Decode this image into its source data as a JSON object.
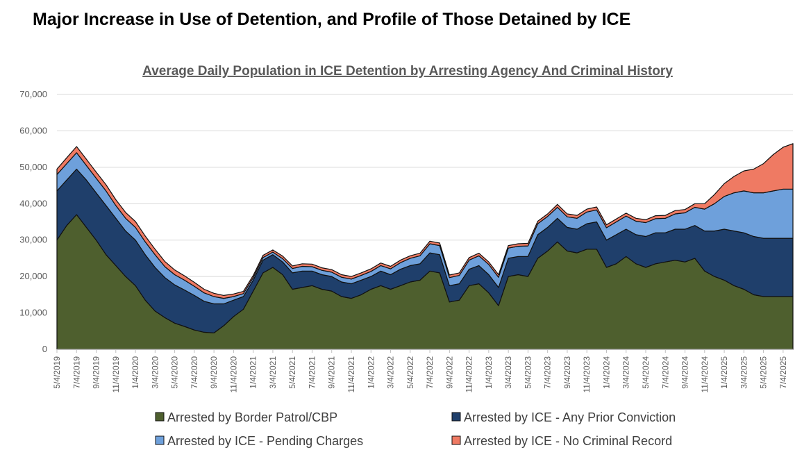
{
  "slide_title": "Major Increase in Use of Detention, and Profile of Those Detained by ICE",
  "colors": {
    "border_patrol": "#4e5f2e",
    "prior_conviction": "#1f3f6b",
    "pending_charges": "#6ea0db",
    "no_record": "#ef7a63"
  },
  "chart_data": {
    "type": "area",
    "stacked": true,
    "title": "Average Daily Population in ICE Detention by Arresting Agency And Criminal History",
    "xlabel": "",
    "ylabel": "",
    "ylim": [
      0,
      70000
    ],
    "y_ticks": [
      0,
      10000,
      20000,
      30000,
      40000,
      50000,
      60000,
      70000
    ],
    "y_tick_labels": [
      "0",
      "10,000",
      "20,000",
      "30,000",
      "40,000",
      "50,000",
      "60,000",
      "70,000"
    ],
    "grid": true,
    "legend": "bottom",
    "x_tick_labels": [
      "5/4/2019",
      "7/4/2019",
      "9/4/2019",
      "11/4/2019",
      "1/4/2020",
      "3/4/2020",
      "5/4/2020",
      "7/4/2020",
      "9/4/2020",
      "11/4/2020",
      "1/4/2021",
      "3/4/2021",
      "5/4/2021",
      "7/4/2021",
      "9/4/2021",
      "11/4/2021",
      "1/4/2022",
      "3/4/2022",
      "5/4/2022",
      "7/4/2022",
      "9/4/2022",
      "11/4/2022",
      "1/4/2023",
      "3/4/2023",
      "5/4/2023",
      "7/4/2023",
      "9/4/2023",
      "11/4/2023",
      "1/4/2024",
      "3/4/2024",
      "5/4/2024",
      "7/4/2024",
      "9/4/2024",
      "11/4/2024",
      "1/4/2025",
      "3/4/2025",
      "5/4/2025",
      "7/4/2025"
    ],
    "x": [
      "2019-05",
      "2019-06",
      "2019-07",
      "2019-08",
      "2019-09",
      "2019-10",
      "2019-11",
      "2019-12",
      "2020-01",
      "2020-02",
      "2020-03",
      "2020-04",
      "2020-05",
      "2020-06",
      "2020-07",
      "2020-08",
      "2020-09",
      "2020-10",
      "2020-11",
      "2020-12",
      "2021-01",
      "2021-02",
      "2021-03",
      "2021-04",
      "2021-05",
      "2021-06",
      "2021-07",
      "2021-08",
      "2021-09",
      "2021-10",
      "2021-11",
      "2021-12",
      "2022-01",
      "2022-02",
      "2022-03",
      "2022-04",
      "2022-05",
      "2022-06",
      "2022-07",
      "2022-08",
      "2022-09",
      "2022-10",
      "2022-11",
      "2022-12",
      "2023-01",
      "2023-02",
      "2023-03",
      "2023-04",
      "2023-05",
      "2023-06",
      "2023-07",
      "2023-08",
      "2023-09",
      "2023-10",
      "2023-11",
      "2023-12",
      "2024-01",
      "2024-02",
      "2024-03",
      "2024-04",
      "2024-05",
      "2024-06",
      "2024-07",
      "2024-08",
      "2024-09",
      "2024-10",
      "2024-11",
      "2024-12",
      "2025-01",
      "2025-02",
      "2025-03",
      "2025-04",
      "2025-05",
      "2025-06",
      "2025-07",
      "2025-08"
    ],
    "series": [
      {
        "name": "Arrested by Border Patrol/CBP",
        "values": [
          30000,
          34000,
          37000,
          33500,
          30000,
          26000,
          23000,
          20000,
          17500,
          13500,
          10500,
          8700,
          7200,
          6300,
          5300,
          4700,
          4500,
          6500,
          9000,
          11000,
          16000,
          21000,
          22500,
          20500,
          16500,
          17000,
          17500,
          16500,
          16000,
          14500,
          14000,
          15000,
          16500,
          17500,
          16500,
          17500,
          18500,
          19000,
          21500,
          21000,
          13000,
          13500,
          17500,
          18000,
          15500,
          12000,
          20000,
          20500,
          20000,
          25000,
          27000,
          29500,
          27000,
          26500,
          27500,
          27500,
          22500,
          23500,
          25500,
          23500,
          22500,
          23500,
          24000,
          24500,
          24000,
          25000,
          21500,
          20000,
          19000,
          17500,
          16500,
          15000,
          14500,
          14500,
          14500,
          14500
        ]
      },
      {
        "name": "Arrested by ICE - Any Prior Conviction",
        "values": [
          13500,
          12500,
          12500,
          13000,
          13000,
          13500,
          13000,
          12500,
          12500,
          12500,
          12000,
          11000,
          10500,
          10000,
          9500,
          8500,
          8000,
          6000,
          4500,
          3500,
          3000,
          3500,
          3500,
          3500,
          4500,
          4500,
          4000,
          4000,
          4000,
          4000,
          4000,
          4000,
          3500,
          4000,
          4000,
          4500,
          4500,
          4500,
          5000,
          5000,
          4500,
          4500,
          4500,
          5000,
          5000,
          5000,
          5000,
          5000,
          5500,
          6500,
          6500,
          6500,
          6500,
          6500,
          7000,
          7500,
          7500,
          8000,
          7500,
          8000,
          8500,
          8500,
          8000,
          8500,
          9000,
          9000,
          11000,
          12500,
          14000,
          15000,
          15500,
          16000,
          16000,
          16000,
          16000,
          16000
        ]
      },
      {
        "name": "Arrested by ICE - Pending Charges",
        "values": [
          4500,
          4500,
          4500,
          4000,
          4000,
          4000,
          3500,
          3500,
          3500,
          3500,
          3500,
          3000,
          2800,
          2700,
          2500,
          2300,
          2000,
          1500,
          1000,
          800,
          700,
          700,
          700,
          900,
          1200,
          1300,
          1200,
          1200,
          1200,
          1300,
          1300,
          1300,
          1400,
          1500,
          1600,
          1800,
          2000,
          2200,
          2500,
          2500,
          2200,
          2300,
          2500,
          2700,
          2800,
          2800,
          2800,
          2800,
          2900,
          3000,
          3000,
          3000,
          2900,
          3000,
          3200,
          3300,
          3400,
          3500,
          3600,
          3700,
          3800,
          3900,
          4000,
          4200,
          4500,
          5000,
          6000,
          7500,
          9000,
          10500,
          11500,
          12000,
          12500,
          13000,
          13500,
          13500
        ]
      },
      {
        "name": "Arrested by ICE - No Criminal Record",
        "values": [
          1500,
          1600,
          1700,
          1700,
          1700,
          1700,
          1600,
          1600,
          1600,
          1600,
          1500,
          1400,
          1300,
          1200,
          1100,
          1000,
          900,
          800,
          700,
          600,
          600,
          600,
          600,
          700,
          700,
          700,
          700,
          700,
          700,
          700,
          700,
          700,
          700,
          700,
          700,
          700,
          700,
          700,
          700,
          700,
          700,
          700,
          700,
          700,
          700,
          700,
          700,
          700,
          700,
          700,
          700,
          800,
          800,
          800,
          800,
          800,
          800,
          800,
          800,
          800,
          800,
          800,
          800,
          900,
          900,
          1000,
          1500,
          2500,
          3500,
          4500,
          5500,
          6500,
          8000,
          10000,
          11500,
          12500
        ]
      }
    ]
  }
}
